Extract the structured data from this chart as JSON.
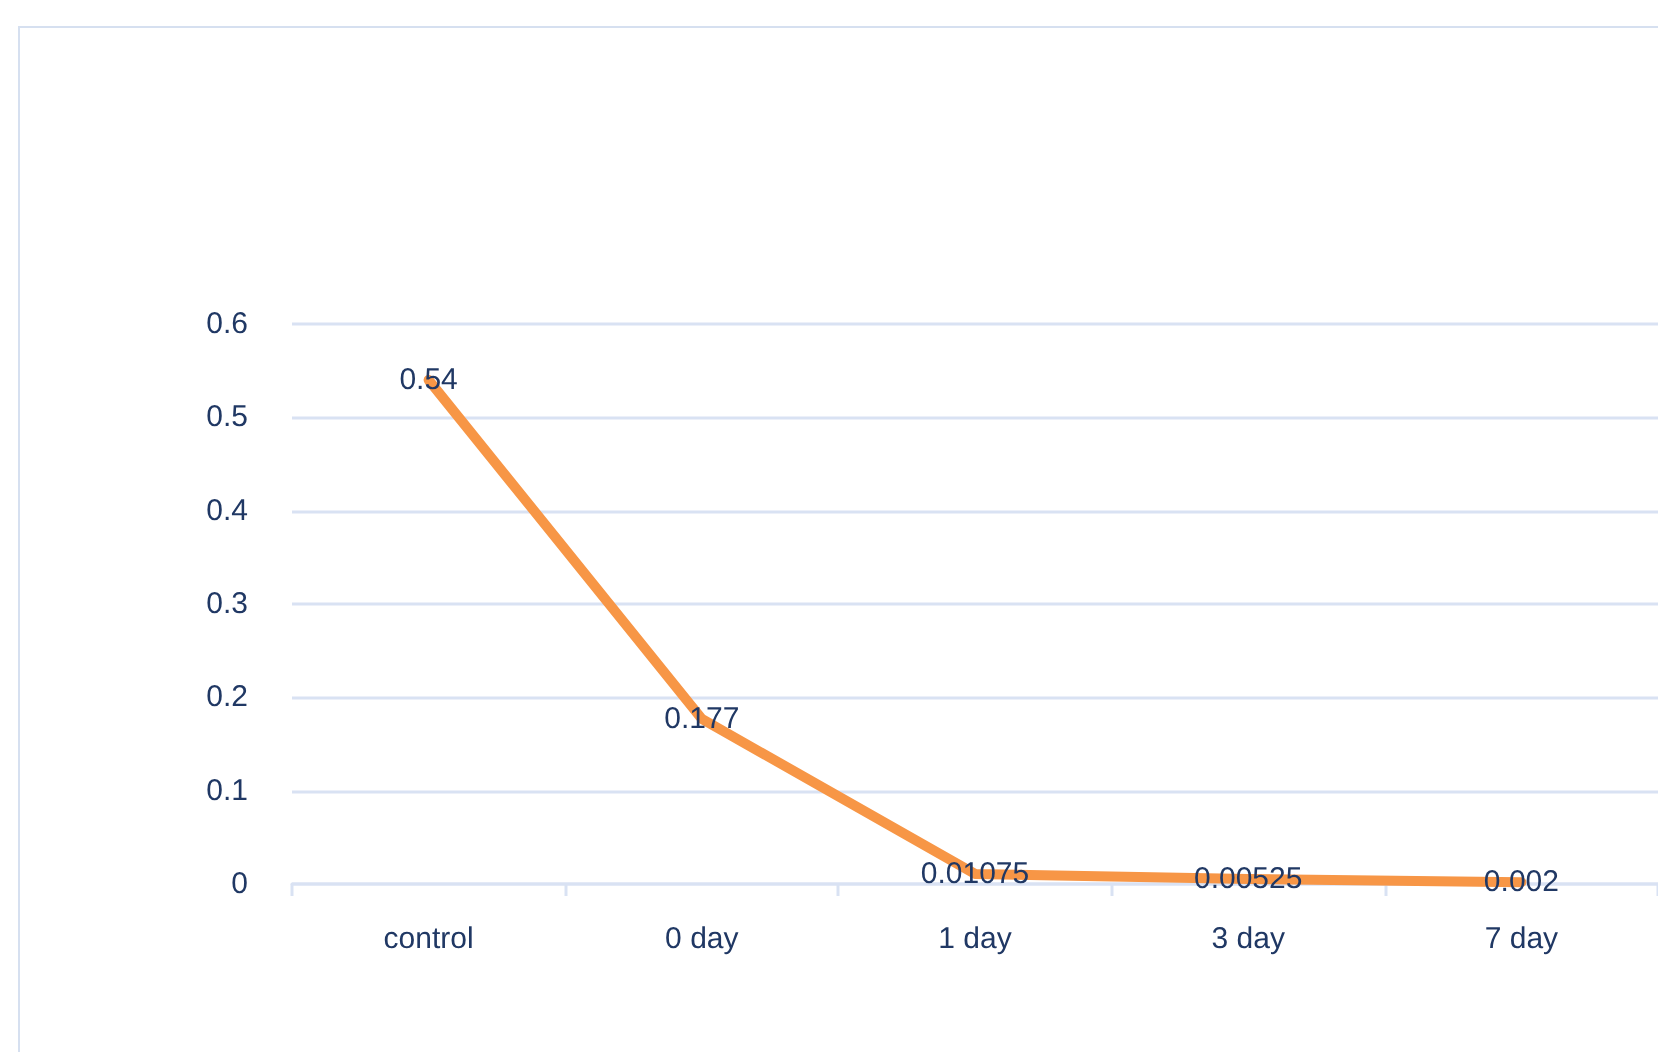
{
  "chart_data": {
    "type": "line",
    "categories": [
      "control",
      "0 day",
      "1 day",
      "3 day",
      "7 day"
    ],
    "series": [
      {
        "color": "#f79646",
        "values": [
          0.54,
          0.177,
          0.01075,
          0.00525,
          0.002
        ]
      }
    ],
    "ylim": [
      0,
      0.6
    ],
    "yticks": [
      0,
      0.1,
      0.2,
      0.3,
      0.4,
      0.5,
      0.6
    ],
    "grid": "y",
    "data_labels": true
  }
}
